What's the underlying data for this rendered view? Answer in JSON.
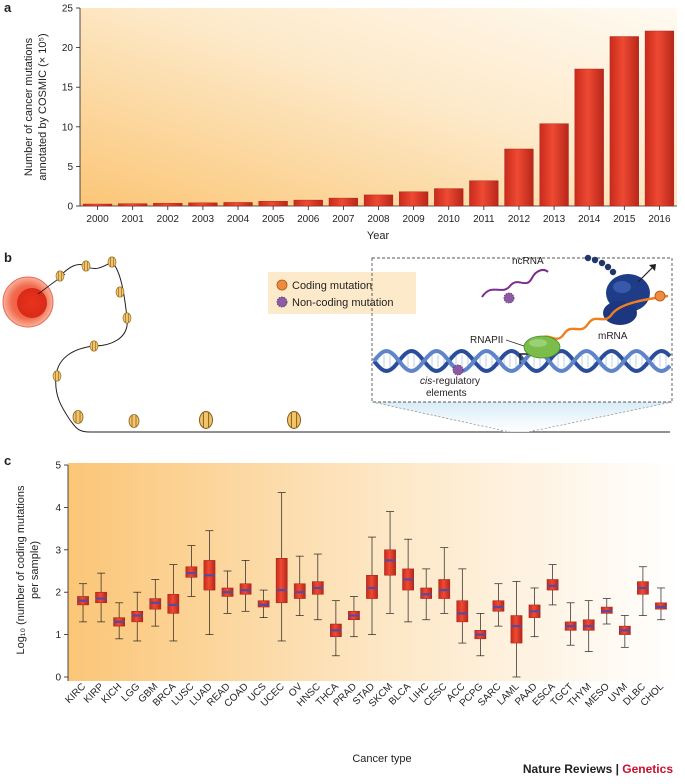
{
  "panels": {
    "a": "a",
    "b": "b",
    "c": "c"
  },
  "chart_data": [
    {
      "type": "bar",
      "title": "",
      "categories": [
        "2000",
        "2001",
        "2002",
        "2003",
        "2004",
        "2005",
        "2006",
        "2007",
        "2008",
        "2009",
        "2010",
        "2011",
        "2012",
        "2013",
        "2014",
        "2015",
        "2016"
      ],
      "values": [
        0.25,
        0.3,
        0.35,
        0.4,
        0.45,
        0.6,
        0.75,
        1.0,
        1.4,
        1.8,
        2.2,
        3.2,
        7.2,
        10.4,
        17.3,
        21.4,
        22.1
      ],
      "xlabel": "Year",
      "ylabel": "Number of cancer mutations annotated by COSMIC (× 10⁵)",
      "ylabel_line1": "Number of cancer mutations",
      "ylabel_line2": "annotated by COSMIC (× 10⁵)",
      "ylim": [
        0,
        25
      ],
      "yticks": [
        0,
        5,
        10,
        15,
        20,
        25
      ],
      "bar_color": "#e5392b"
    },
    {
      "type": "boxplot",
      "title": "",
      "categories": [
        "KIRC",
        "KIRP",
        "KICH",
        "LGG",
        "GBM",
        "BRCA",
        "LUSC",
        "LUAD",
        "READ",
        "COAD",
        "UCS",
        "UCEC",
        "OV",
        "HNSC",
        "THCA",
        "PRAD",
        "STAD",
        "SKCM",
        "BLCA",
        "LIHC",
        "CESC",
        "ACC",
        "PCPG",
        "SARC",
        "LAML",
        "PAAD",
        "ESCA",
        "TGCT",
        "THYM",
        "MESO",
        "UVM",
        "DLBC",
        "CHOL"
      ],
      "boxes": [
        {
          "min": 1.3,
          "q1": 1.7,
          "median": 1.8,
          "q3": 1.9,
          "max": 2.2
        },
        {
          "min": 1.3,
          "q1": 1.75,
          "median": 1.85,
          "q3": 2.0,
          "max": 2.45
        },
        {
          "min": 0.9,
          "q1": 1.2,
          "median": 1.3,
          "q3": 1.4,
          "max": 1.75
        },
        {
          "min": 0.85,
          "q1": 1.3,
          "median": 1.45,
          "q3": 1.55,
          "max": 2.0
        },
        {
          "min": 1.2,
          "q1": 1.6,
          "median": 1.75,
          "q3": 1.85,
          "max": 2.3
        },
        {
          "min": 0.85,
          "q1": 1.5,
          "median": 1.7,
          "q3": 1.95,
          "max": 2.65
        },
        {
          "min": 1.9,
          "q1": 2.35,
          "median": 2.45,
          "q3": 2.6,
          "max": 3.1
        },
        {
          "min": 1.0,
          "q1": 2.05,
          "median": 2.4,
          "q3": 2.75,
          "max": 3.45
        },
        {
          "min": 1.5,
          "q1": 1.9,
          "median": 2.0,
          "q3": 2.1,
          "max": 2.5
        },
        {
          "min": 1.55,
          "q1": 1.95,
          "median": 2.05,
          "q3": 2.2,
          "max": 2.75
        },
        {
          "min": 1.4,
          "q1": 1.65,
          "median": 1.7,
          "q3": 1.8,
          "max": 2.05
        },
        {
          "min": 0.85,
          "q1": 1.75,
          "median": 2.05,
          "q3": 2.8,
          "max": 4.35
        },
        {
          "min": 1.45,
          "q1": 1.85,
          "median": 2.0,
          "q3": 2.2,
          "max": 2.85
        },
        {
          "min": 1.35,
          "q1": 1.95,
          "median": 2.1,
          "q3": 2.25,
          "max": 2.9
        },
        {
          "min": 0.5,
          "q1": 0.95,
          "median": 1.1,
          "q3": 1.25,
          "max": 1.8
        },
        {
          "min": 0.95,
          "q1": 1.35,
          "median": 1.45,
          "q3": 1.55,
          "max": 1.9
        },
        {
          "min": 1.0,
          "q1": 1.85,
          "median": 2.1,
          "q3": 2.4,
          "max": 3.3
        },
        {
          "min": 1.5,
          "q1": 2.4,
          "median": 2.75,
          "q3": 3.0,
          "max": 3.9
        },
        {
          "min": 1.3,
          "q1": 2.05,
          "median": 2.3,
          "q3": 2.55,
          "max": 3.25
        },
        {
          "min": 1.35,
          "q1": 1.85,
          "median": 1.95,
          "q3": 2.1,
          "max": 2.55
        },
        {
          "min": 1.5,
          "q1": 1.85,
          "median": 2.05,
          "q3": 2.3,
          "max": 3.05
        },
        {
          "min": 0.8,
          "q1": 1.3,
          "median": 1.5,
          "q3": 1.8,
          "max": 2.55
        },
        {
          "min": 0.5,
          "q1": 0.9,
          "median": 1.0,
          "q3": 1.1,
          "max": 1.5
        },
        {
          "min": 1.2,
          "q1": 1.55,
          "median": 1.65,
          "q3": 1.8,
          "max": 2.2
        },
        {
          "min": 0.0,
          "q1": 0.8,
          "median": 1.2,
          "q3": 1.45,
          "max": 2.25
        },
        {
          "min": 0.95,
          "q1": 1.4,
          "median": 1.55,
          "q3": 1.7,
          "max": 2.1
        },
        {
          "min": 1.7,
          "q1": 2.05,
          "median": 2.15,
          "q3": 2.3,
          "max": 2.65
        },
        {
          "min": 0.75,
          "q1": 1.1,
          "median": 1.2,
          "q3": 1.3,
          "max": 1.75
        },
        {
          "min": 0.6,
          "q1": 1.1,
          "median": 1.2,
          "q3": 1.35,
          "max": 1.8
        },
        {
          "min": 1.25,
          "q1": 1.5,
          "median": 1.55,
          "q3": 1.65,
          "max": 1.85
        },
        {
          "min": 0.7,
          "q1": 1.0,
          "median": 1.1,
          "q3": 1.2,
          "max": 1.45
        },
        {
          "min": 1.45,
          "q1": 1.95,
          "median": 2.1,
          "q3": 2.25,
          "max": 2.6
        },
        {
          "min": 1.35,
          "q1": 1.6,
          "median": 1.65,
          "q3": 1.75,
          "max": 2.1
        }
      ],
      "xlabel": "Cancer type",
      "ylabel": "Log₁₀ (number of coding mutations per sample)",
      "ylabel_line1": "Log₁₀ (number of coding mutations",
      "ylabel_line2": "per sample)",
      "ylim": [
        0,
        5
      ],
      "yticks": [
        0,
        1,
        2,
        3,
        4,
        5
      ],
      "box_color": "#e5392b",
      "median_color": "#5b4a9c"
    }
  ],
  "diagram": {
    "legend": {
      "coding": "Coding mutation",
      "noncoding": "Non-coding mutation"
    },
    "labels": {
      "ncrna": "ncRNA",
      "mrna": "mRNA",
      "rnapii": "RNAPII",
      "cis1": "cis",
      "cis2": "-regulatory",
      "cis3": "elements"
    },
    "colors": {
      "coding": "#f08a3c",
      "noncoding": "#8e5aa6",
      "polymerase": "#7bbd4a",
      "ribosome": "#1f3c88",
      "ncrna": "#7b2f8c",
      "mrna": "#f07f1e"
    }
  },
  "footer": {
    "journal": "Nature Reviews",
    "sep": " | ",
    "section": "Genetics"
  }
}
